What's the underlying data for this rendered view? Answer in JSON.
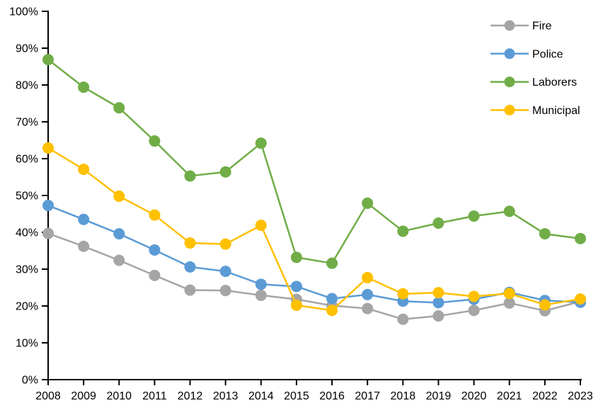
{
  "chart_data": {
    "type": "line",
    "title": "",
    "xlabel": "",
    "ylabel": "",
    "categories": [
      "2008",
      "2009",
      "2010",
      "2011",
      "2012",
      "2013",
      "2014",
      "2015",
      "2016",
      "2017",
      "2018",
      "2019",
      "2020",
      "2021",
      "2022",
      "2023"
    ],
    "series": [
      {
        "name": "Fire",
        "color": "#a5a5a5",
        "values": [
          39.7,
          36.2,
          32.4,
          28.3,
          24.3,
          24.2,
          22.9,
          21.8,
          20.1,
          19.3,
          16.4,
          17.3,
          18.8,
          20.8,
          18.7,
          21.2
        ]
      },
      {
        "name": "Police",
        "color": "#5b9bd5",
        "values": [
          47.3,
          43.5,
          39.6,
          35.2,
          30.6,
          29.4,
          25.9,
          25.3,
          22.0,
          23.1,
          21.3,
          20.9,
          21.8,
          23.7,
          21.5,
          21.0
        ]
      },
      {
        "name": "Laborers",
        "color": "#70ad47",
        "values": [
          86.9,
          79.4,
          73.8,
          64.8,
          55.3,
          56.4,
          64.2,
          33.2,
          31.6,
          47.9,
          40.3,
          42.5,
          44.4,
          45.7,
          39.6,
          38.3
        ]
      },
      {
        "name": "Municipal",
        "color": "#ffc000",
        "values": [
          62.9,
          57.1,
          49.8,
          44.7,
          37.1,
          36.8,
          41.9,
          20.2,
          18.8,
          27.7,
          23.3,
          23.6,
          22.6,
          23.4,
          20.3,
          21.9
        ]
      }
    ],
    "ylim": [
      0,
      100
    ],
    "ytick_step": 10,
    "ytick_suffix": "%",
    "grid": false,
    "legend_position": "top-right-inside",
    "axis_color": "#000000",
    "background_color": "#ffffff",
    "marker": "circle"
  }
}
